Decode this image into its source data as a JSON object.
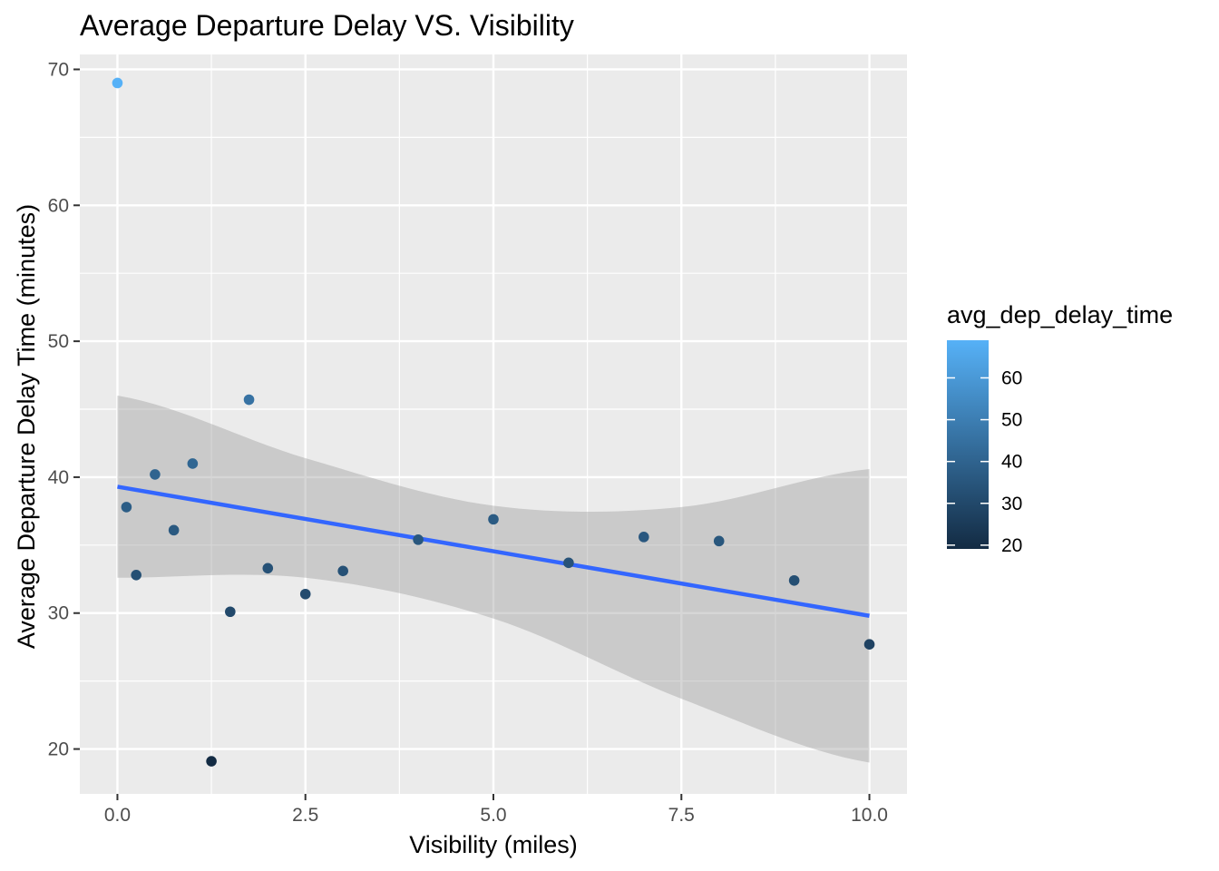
{
  "chart_data": {
    "type": "scatter",
    "title": "Average Departure Delay VS. Visibility",
    "xlabel": "Visibility (miles)",
    "ylabel": "Average Departure Delay Time (minutes)",
    "xlim": [
      -0.5,
      10.5
    ],
    "ylim": [
      16.7,
      71.1
    ],
    "x_ticks": [
      0,
      2.5,
      5,
      7.5,
      10
    ],
    "x_tick_labels": [
      "0.0",
      "2.5",
      "5.0",
      "7.5",
      "10.0"
    ],
    "y_ticks": [
      20,
      30,
      40,
      50,
      60,
      70
    ],
    "y_tick_labels": [
      "20",
      "30",
      "40",
      "50",
      "60",
      "70"
    ],
    "grid": true,
    "points": [
      {
        "x": 0.0,
        "y": 69.0
      },
      {
        "x": 0.12,
        "y": 37.8
      },
      {
        "x": 0.25,
        "y": 32.8
      },
      {
        "x": 0.5,
        "y": 40.2
      },
      {
        "x": 0.75,
        "y": 36.1
      },
      {
        "x": 1.0,
        "y": 41.0
      },
      {
        "x": 1.25,
        "y": 19.1
      },
      {
        "x": 1.5,
        "y": 30.1
      },
      {
        "x": 1.75,
        "y": 45.7
      },
      {
        "x": 2.0,
        "y": 33.3
      },
      {
        "x": 2.5,
        "y": 31.4
      },
      {
        "x": 3.0,
        "y": 33.1
      },
      {
        "x": 4.0,
        "y": 35.4
      },
      {
        "x": 5.0,
        "y": 36.9
      },
      {
        "x": 6.0,
        "y": 33.7
      },
      {
        "x": 7.0,
        "y": 35.6
      },
      {
        "x": 8.0,
        "y": 35.3
      },
      {
        "x": 9.0,
        "y": 32.4
      },
      {
        "x": 10.0,
        "y": 27.7
      }
    ],
    "trend_line": {
      "method": "linear",
      "color": "#3366ff",
      "x": [
        0,
        10
      ],
      "y": [
        39.3,
        29.8
      ]
    },
    "confidence_band": {
      "x": [
        0,
        2.5,
        5,
        7.5,
        10
      ],
      "upper": [
        46.0,
        41.4,
        37.9,
        37.8,
        40.6
      ],
      "lower": [
        32.6,
        32.6,
        29.6,
        23.7,
        19.0
      ]
    },
    "legend": {
      "title": "avg_dep_delay_time",
      "position": "right",
      "type": "colorbar",
      "min": 19.1,
      "max": 69.0,
      "breaks": [
        20,
        30,
        40,
        50,
        60
      ],
      "labels": [
        "20",
        "30",
        "40",
        "50",
        "60"
      ],
      "low_color": "#132b43",
      "high_color": "#56b1f7"
    },
    "colors": {
      "panel_background": "#ebebeb",
      "grid_major": "#ffffff",
      "band_fill": "#999999"
    }
  }
}
